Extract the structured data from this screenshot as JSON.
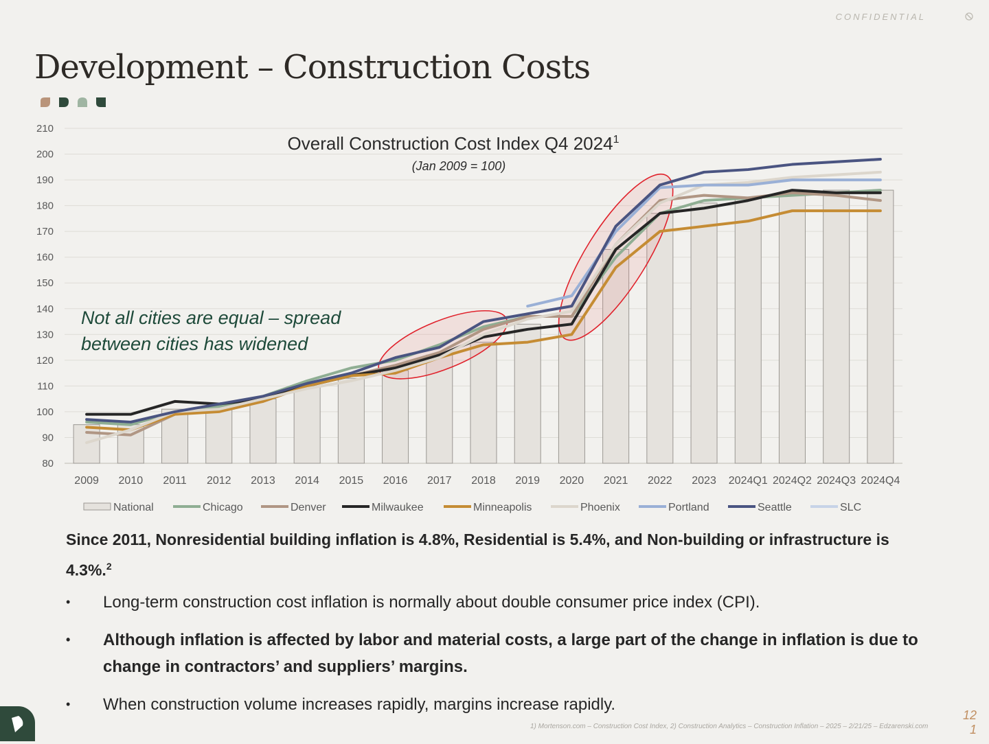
{
  "header": {
    "confidential_label": "CONFIDENTIAL",
    "lock_icon": "block-icon"
  },
  "page_title": "Development – Construction Costs",
  "brand_colors": [
    "#b9947a",
    "#2f4a3b",
    "#9fb5a2",
    "#2f4a3b"
  ],
  "callout": {
    "line1": "Not all cities are equal – spread",
    "line2": "between cities has widened"
  },
  "summary": {
    "text": "Since 2011, Nonresidential building inflation is 4.8%, Residential is 5.4%, and Non-building or infrastructure is 4.3%.",
    "footnote_mark": "2"
  },
  "bullets": [
    "Long-term construction cost inflation is normally about double consumer price index (CPI).",
    "Although inflation is affected by labor and material costs, a large part of the change in inflation is due to change in contractors’ and suppliers’ margins.",
    "When construction volume increases rapidly, margins increase rapidly."
  ],
  "footnote": "1) Mortenson.com – Construction Cost Index, 2) Construction Analytics – Construction Inflation – 2025 – 2/21/25 – Edzarenski.com",
  "page_number": {
    "line1": "12",
    "line2": "1"
  },
  "chart_data": {
    "type": "bar+line",
    "title": "Overall Construction Cost Index Q4 2024",
    "title_sup": "1",
    "subtitle": "(Jan 2009 = 100)",
    "ylim": [
      80,
      210
    ],
    "yticks": [
      80,
      90,
      100,
      110,
      120,
      130,
      140,
      150,
      160,
      170,
      180,
      190,
      200,
      210
    ],
    "categories": [
      "2009",
      "2010",
      "2011",
      "2012",
      "2013",
      "2014",
      "2015",
      "2016",
      "2017",
      "2018",
      "2019",
      "2020",
      "2021",
      "2022",
      "2023",
      "2024Q1",
      "2024Q2",
      "2024Q3",
      "2024Q4"
    ],
    "bars": {
      "name": "National",
      "values": [
        95,
        95,
        101,
        101,
        105,
        110,
        113,
        116,
        122,
        127,
        134,
        137,
        163,
        177,
        181,
        183,
        185,
        186,
        186
      ]
    },
    "series": [
      {
        "name": "Chicago",
        "color": "#8fae93",
        "values": [
          96,
          95,
          100,
          102,
          106,
          112,
          117,
          120,
          126,
          133,
          137,
          137,
          160,
          177,
          182,
          183,
          184,
          185,
          186
        ]
      },
      {
        "name": "Denver",
        "color": "#b09684",
        "values": [
          92,
          91,
          99,
          101,
          104,
          110,
          114,
          118,
          123,
          132,
          137,
          137,
          165,
          182,
          184,
          183,
          185,
          184,
          182
        ]
      },
      {
        "name": "Milwaukee",
        "color": "#262626",
        "values": [
          99,
          99,
          104,
          103,
          105,
          110,
          114,
          117,
          122,
          129,
          132,
          134,
          163,
          177,
          179,
          182,
          186,
          185,
          185
        ]
      },
      {
        "name": "Minneapolis",
        "color": "#c58c34",
        "values": [
          94,
          93,
          99,
          100,
          104,
          110,
          114,
          115,
          121,
          126,
          127,
          130,
          156,
          170,
          172,
          174,
          178,
          178,
          178
        ]
      },
      {
        "name": "Phoenix",
        "color": "#dcd6cc",
        "values": [
          88,
          93,
          100,
          101,
          105,
          109,
          112,
          116,
          121,
          130,
          136,
          139,
          165,
          181,
          188,
          189,
          191,
          192,
          193
        ]
      },
      {
        "name": "Portland",
        "color": "#9ab0d6",
        "values": [
          null,
          null,
          null,
          null,
          null,
          null,
          null,
          null,
          null,
          null,
          141,
          145,
          170,
          187,
          188,
          188,
          190,
          190,
          190
        ]
      },
      {
        "name": "Seattle",
        "color": "#4a5481",
        "values": [
          97,
          96,
          100,
          103,
          106,
          111,
          115,
          121,
          125,
          135,
          138,
          141,
          172,
          188,
          193,
          194,
          196,
          197,
          198
        ]
      },
      {
        "name": "SLC",
        "color": "#c7d3e7",
        "values": [
          null,
          null,
          null,
          null,
          null,
          null,
          null,
          null,
          null,
          null,
          null,
          null,
          null,
          null,
          null,
          null,
          null,
          null,
          null
        ]
      }
    ],
    "highlights": [
      "2016–2018",
      "2020–2022"
    ],
    "legend_position": "bottom",
    "grid": true
  }
}
